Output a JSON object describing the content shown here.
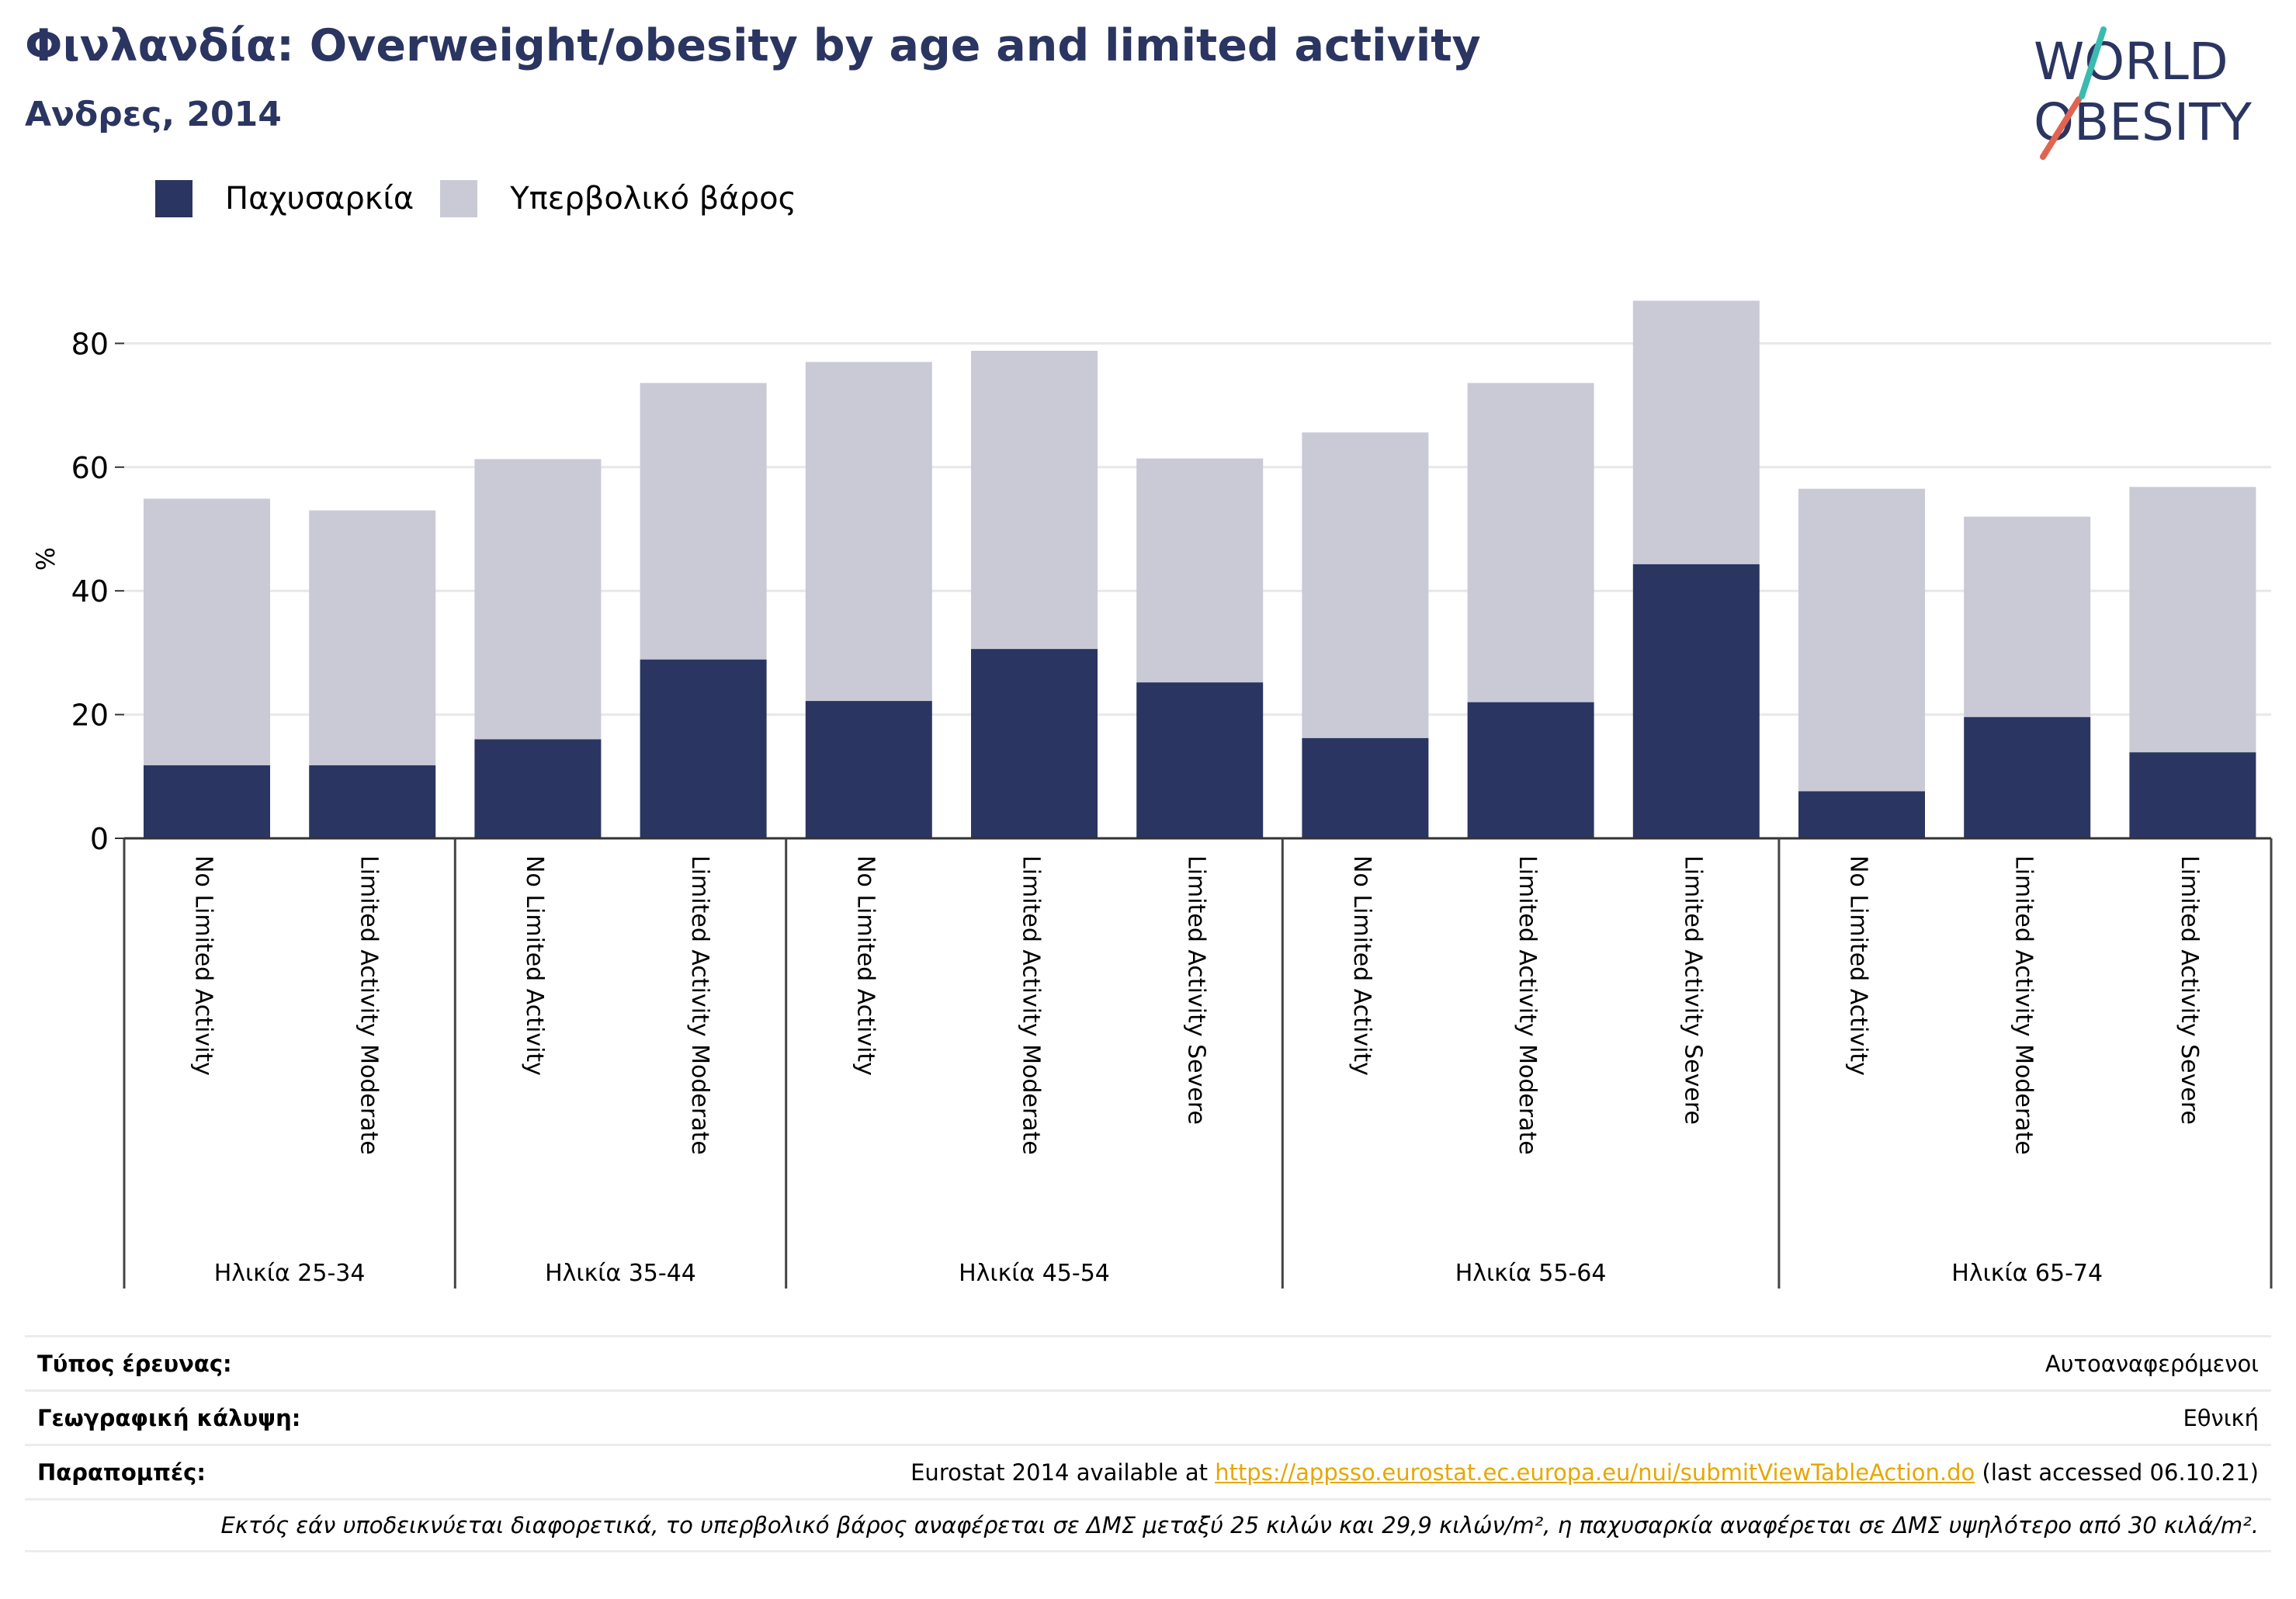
{
  "header": {
    "title": "Φινλανδία: Overweight/obesity by age and limited activity",
    "subtitle": "Ανδρες, 2014"
  },
  "logo": {
    "line1": "WORLD",
    "line2": "OBESITY"
  },
  "colors": {
    "obesity": "#2b3561",
    "overweight": "#c9cad6",
    "title": "#2b3561",
    "link": "#e6a700"
  },
  "chart_data": {
    "type": "bar",
    "stacked": true,
    "ylabel": "%",
    "ylim": [
      0,
      87
    ],
    "yticks": [
      0,
      20,
      40,
      60,
      80
    ],
    "grid": true,
    "legend_position": "top-left",
    "groups": [
      {
        "label": "Ηλικία 25-34",
        "categories": [
          "No Limited Activity",
          "Limited Activity Moderate"
        ]
      },
      {
        "label": "Ηλικία 35-44",
        "categories": [
          "No Limited Activity",
          "Limited Activity Moderate"
        ]
      },
      {
        "label": "Ηλικία 45-54",
        "categories": [
          "No Limited Activity",
          "Limited Activity Moderate",
          "Limited Activity Severe"
        ]
      },
      {
        "label": "Ηλικία 55-64",
        "categories": [
          "No Limited Activity",
          "Limited Activity Moderate",
          "Limited Activity Severe"
        ]
      },
      {
        "label": "Ηλικία 65-74",
        "categories": [
          "No Limited Activity",
          "Limited Activity Moderate",
          "Limited Activity Severe"
        ]
      }
    ],
    "series": [
      {
        "name": "Παχυσαρκία",
        "values": [
          11.8,
          11.8,
          16.0,
          28.9,
          22.2,
          30.6,
          25.2,
          16.2,
          22.0,
          44.3,
          7.6,
          19.6,
          13.9
        ]
      },
      {
        "name": "Υπερβολικό βάρος",
        "values": [
          43.1,
          41.2,
          45.3,
          44.7,
          54.8,
          48.2,
          36.2,
          49.4,
          51.6,
          42.6,
          48.9,
          32.4,
          42.9
        ]
      }
    ]
  },
  "info": {
    "survey_label": "Τύπος έρευνας:",
    "survey_value": "Αυτοαναφερόμενοι",
    "coverage_label": "Γεωγραφική κάλυψη:",
    "coverage_value": "Εθνική",
    "refs_label": "Παραπομπές:",
    "refs_prefix": "Eurostat 2014 available at ",
    "refs_link": "https://appsso.eurostat.ec.europa.eu/nui/submitViewTableAction.do",
    "refs_suffix": " (last accessed 06.10.21)",
    "note": "Εκτός εάν υποδεικνύεται διαφορετικά, το υπερβολικό βάρος αναφέρεται σε ΔΜΣ μεταξύ 25 κιλών και 29,9 κιλών/m², η παχυσαρκία αναφέρεται σε ΔΜΣ υψηλότερο από 30 κιλά/m²."
  }
}
